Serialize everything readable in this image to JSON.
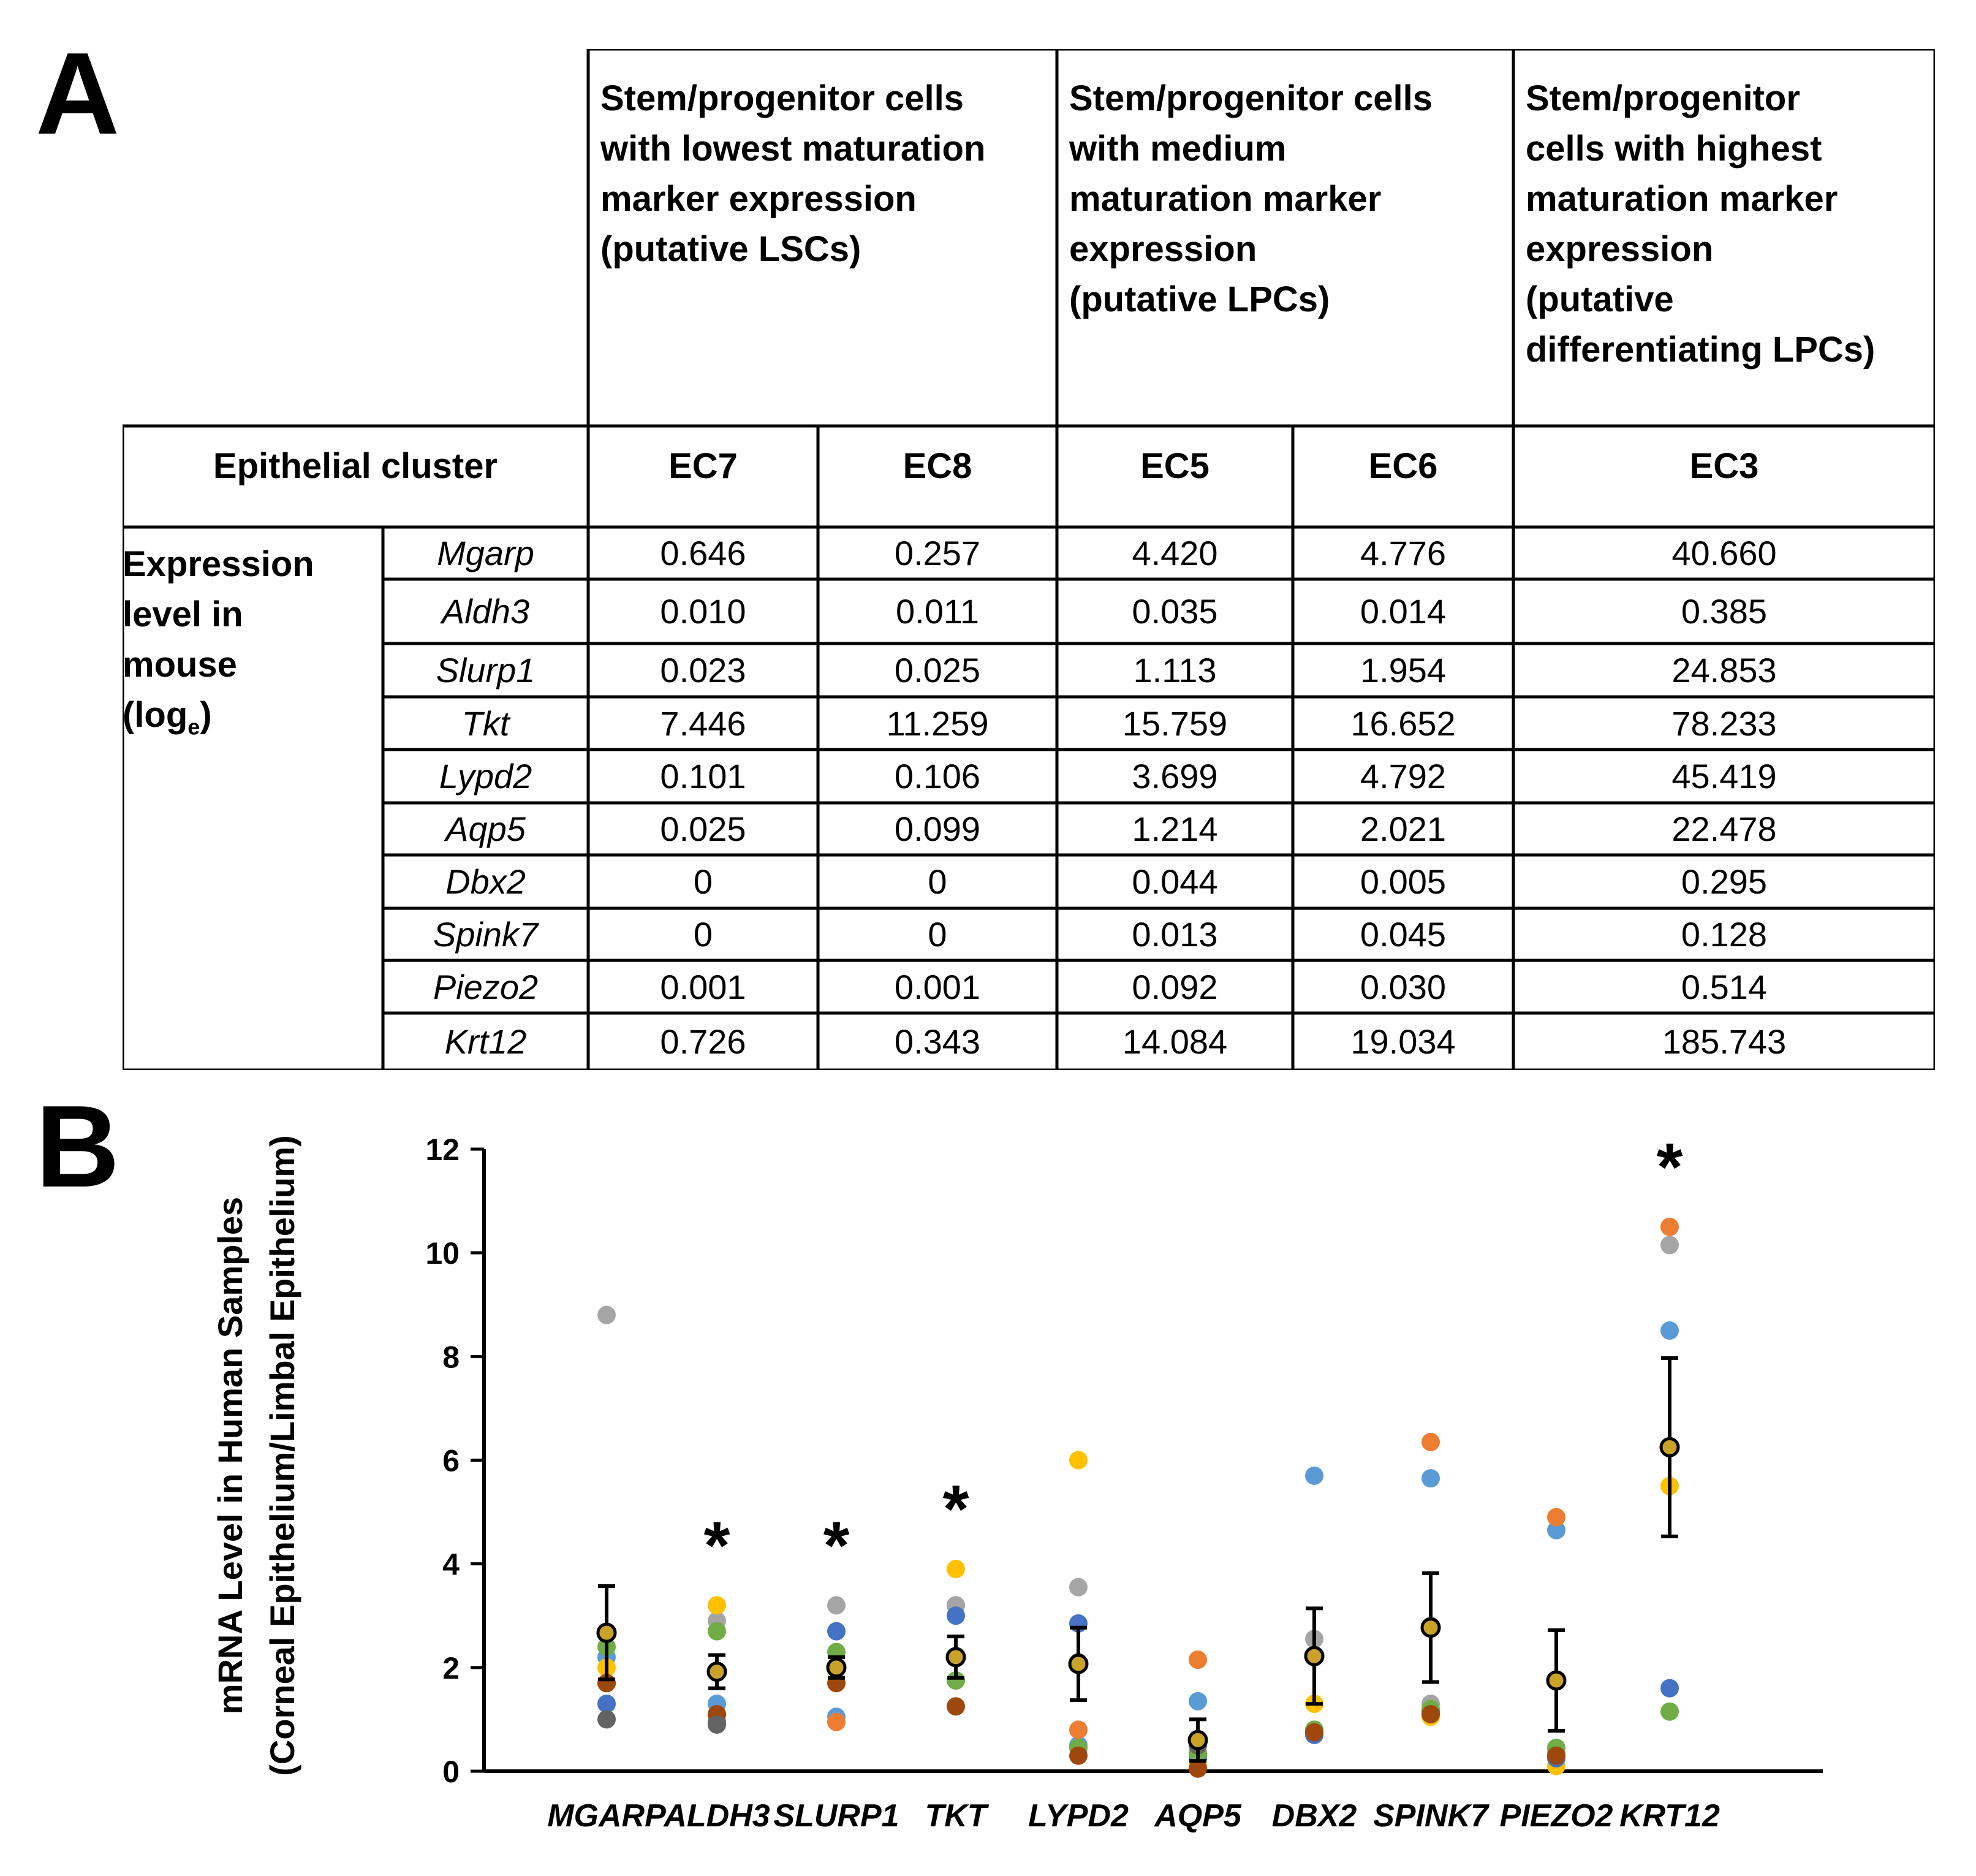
{
  "panel_a": {
    "letter": "A",
    "headers": {
      "lsc": [
        "Stem/progenitor cells",
        "with lowest maturation",
        "marker expression",
        "(putative LSCs)"
      ],
      "lpc": [
        "Stem/progenitor cells",
        "with medium",
        "maturation marker",
        "expression",
        "(putative LPCs)"
      ],
      "diff": [
        "Stem/progenitor",
        "cells with highest",
        "maturation marker",
        "expression",
        "(putative",
        "differentiating LPCs)"
      ]
    },
    "cluster_label": "Epithelial cluster",
    "clusters": [
      "EC7",
      "EC8",
      "EC5",
      "EC6",
      "EC3"
    ],
    "row_label": [
      "Expression",
      "level in",
      "mouse"
    ],
    "row_label_log": "(log",
    "row_label_sub": "e",
    "row_label_close": ")",
    "rows": [
      {
        "gene": "Mgarp",
        "values": [
          "0.646",
          "0.257",
          "4.420",
          "4.776",
          "40.660"
        ]
      },
      {
        "gene": "Aldh3",
        "values": [
          "0.010",
          "0.011",
          "0.035",
          "0.014",
          "0.385"
        ]
      },
      {
        "gene": "Slurp1",
        "values": [
          "0.023",
          "0.025",
          "1.113",
          "1.954",
          "24.853"
        ]
      },
      {
        "gene": "Tkt",
        "values": [
          "7.446",
          "11.259",
          "15.759",
          "16.652",
          "78.233"
        ]
      },
      {
        "gene": "Lypd2",
        "values": [
          "0.101",
          "0.106",
          "3.699",
          "4.792",
          "45.419"
        ]
      },
      {
        "gene": "Aqp5",
        "values": [
          "0.025",
          "0.099",
          "1.214",
          "2.021",
          "22.478"
        ]
      },
      {
        "gene": "Dbx2",
        "values": [
          "0",
          "0",
          "0.044",
          "0.005",
          "0.295"
        ]
      },
      {
        "gene": "Spink7",
        "values": [
          "0",
          "0",
          "0.013",
          "0.045",
          "0.128"
        ]
      },
      {
        "gene": "Piezo2",
        "values": [
          "0.001",
          "0.001",
          "0.092",
          "0.030",
          "0.514"
        ]
      },
      {
        "gene": "Krt12",
        "values": [
          "0.726",
          "0.343",
          "14.084",
          "19.034",
          "185.743"
        ]
      }
    ]
  },
  "panel_b": {
    "letter": "B",
    "chart_data": {
      "type": "scatter",
      "title": "",
      "xlabel": "",
      "ylabel": [
        "mRNA Level in Human Samples",
        "(Corneal Epithelium/Limbal Epithelium)"
      ],
      "ylim": [
        0,
        12
      ],
      "yticks": [
        0,
        2,
        4,
        6,
        8,
        10,
        12
      ],
      "categories": [
        "MGARP",
        "ALDH3",
        "SLURP1",
        "TKT",
        "LYPD2",
        "AQP5",
        "DBX2",
        "SPINK7",
        "PIEZO2",
        "KRT12"
      ],
      "significance_marker": "*",
      "significant": [
        false,
        true,
        true,
        true,
        false,
        false,
        false,
        false,
        false,
        true
      ],
      "means": [
        2.67,
        1.92,
        2.0,
        2.2,
        2.07,
        0.6,
        2.22,
        2.77,
        1.75,
        6.25
      ],
      "error": [
        0.9,
        0.32,
        0.2,
        0.4,
        0.7,
        0.4,
        0.92,
        1.05,
        0.97,
        1.72
      ],
      "sample_colors": [
        "#5b9bd5",
        "#ed7d31",
        "#a5a5a5",
        "#ffc000",
        "#4472c4",
        "#70ad47",
        "#9e480e",
        "#636363"
      ],
      "samples": [
        [
          2.2,
          1.7,
          8.8,
          2.0,
          1.3,
          2.4,
          1.7,
          1.0
        ],
        [
          1.3,
          1.1,
          2.9,
          3.2,
          0.95,
          2.7,
          1.1,
          0.9
        ],
        [
          1.05,
          0.95,
          3.2,
          2.0,
          2.7,
          2.3,
          1.7,
          2.0
        ],
        [
          3.2,
          2.2,
          3.2,
          3.9,
          3.0,
          1.75,
          1.25,
          2.2
        ],
        [
          0.5,
          0.8,
          3.55,
          6.0,
          2.85,
          0.45,
          0.3,
          2.1
        ],
        [
          1.35,
          2.15,
          0.3,
          0.1,
          0.25,
          0.35,
          0.05,
          0.5
        ],
        [
          5.7,
          0.8,
          2.55,
          1.3,
          0.7,
          0.8,
          0.75,
          2.2
        ],
        [
          5.65,
          6.35,
          1.3,
          1.05,
          1.15,
          1.2,
          1.1,
          2.8
        ],
        [
          4.65,
          4.9,
          0.35,
          0.1,
          0.25,
          0.45,
          0.3,
          1.75
        ],
        [
          8.5,
          10.5,
          10.15,
          5.5,
          1.6,
          1.15,
          6.25,
          6.25
        ]
      ],
      "mean_marker_fill": "#c9a227"
    }
  }
}
